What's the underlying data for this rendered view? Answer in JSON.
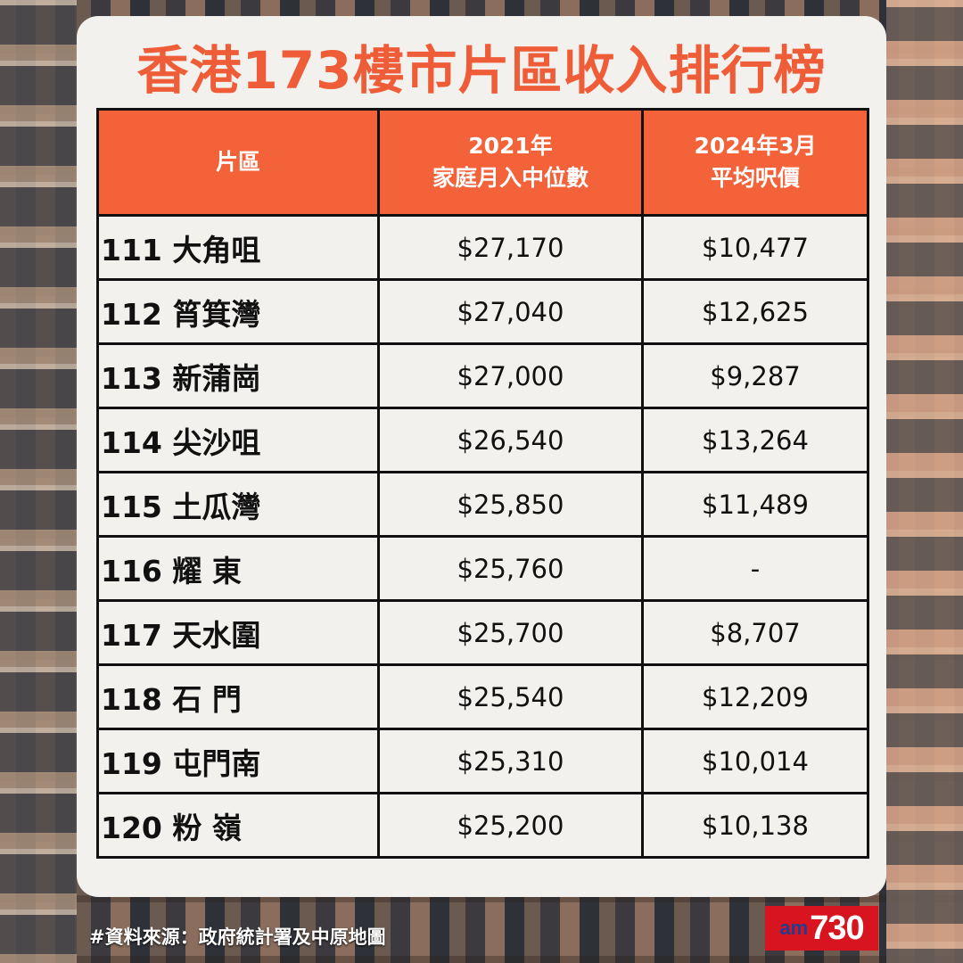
{
  "title": "香港173樓市片區收入排行榜",
  "table": {
    "headers": [
      {
        "line1": "片區",
        "line2": ""
      },
      {
        "line1": "2021年",
        "line2": "家庭月入中位數"
      },
      {
        "line1": "2024年3月",
        "line2": "平均呎價"
      }
    ],
    "rows": [
      {
        "area": "111 大角咀",
        "income": "$27,170",
        "price": "$10,477"
      },
      {
        "area": "112 筲箕灣",
        "income": "$27,040",
        "price": "$12,625"
      },
      {
        "area": "113 新蒲崗",
        "income": "$27,000",
        "price": "$9,287"
      },
      {
        "area": "114 尖沙咀",
        "income": "$26,540",
        "price": "$13,264"
      },
      {
        "area": "115 土瓜灣",
        "income": "$25,850",
        "price": "$11,489"
      },
      {
        "area": "116 耀 東",
        "income": "$25,760",
        "price": "-"
      },
      {
        "area": "117 天水圍",
        "income": "$25,700",
        "price": "$8,707"
      },
      {
        "area": "118 石 門",
        "income": "$25,540",
        "price": "$12,209"
      },
      {
        "area": "119 屯門南",
        "income": "$25,310",
        "price": "$10,014"
      },
      {
        "area": "120 粉 嶺",
        "income": "$25,200",
        "price": "$10,138"
      }
    ]
  },
  "footer": {
    "source": "#資料來源：政府統計署及中原地圖",
    "logo": {
      "prefix": "am",
      "number": "730"
    }
  },
  "colors": {
    "accent": "#f4623a",
    "title": "#ef5d38",
    "logo_bg": "#d7141f",
    "card": "#f2f1ee"
  }
}
